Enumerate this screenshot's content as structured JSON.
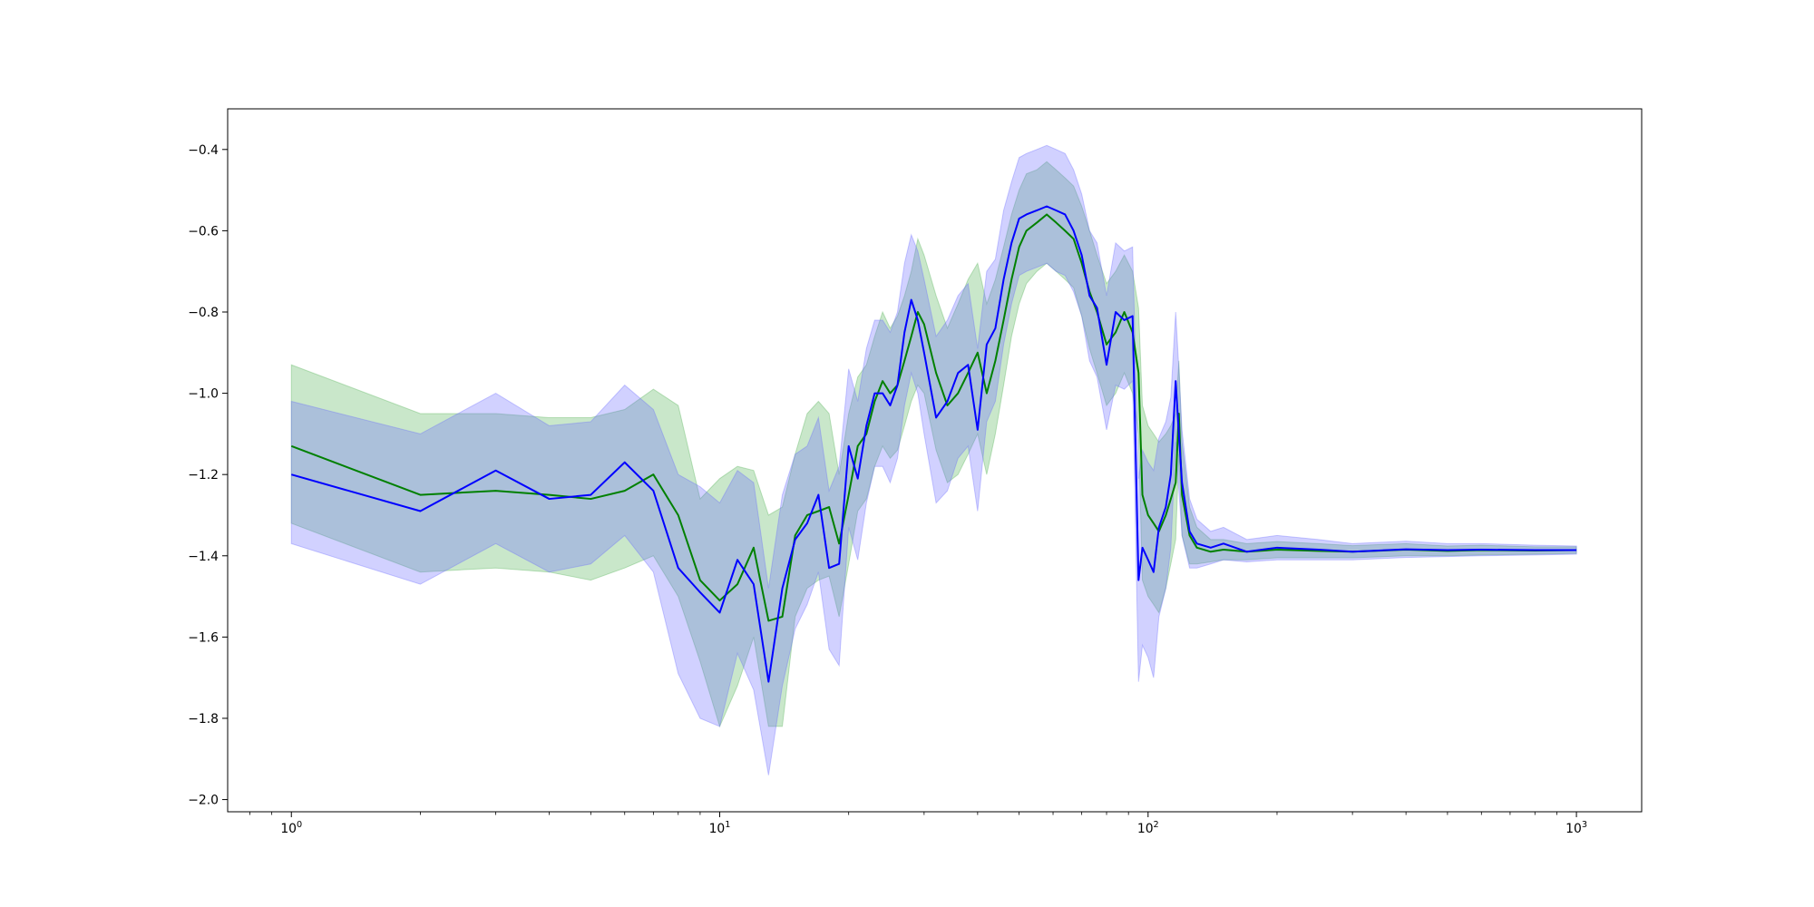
{
  "chart_data": {
    "type": "line",
    "title": "",
    "xlabel": "",
    "ylabel": "",
    "xscale": "log",
    "xlim": [
      0.71,
      1420
    ],
    "ylim": [
      -2.03,
      -0.3
    ],
    "grid": false,
    "legend": "none",
    "x_ticks": [
      {
        "value": 1,
        "base": "10",
        "exp": "0"
      },
      {
        "value": 10,
        "base": "10",
        "exp": "1"
      },
      {
        "value": 100,
        "base": "10",
        "exp": "2"
      },
      {
        "value": 1000,
        "base": "10",
        "exp": "3"
      }
    ],
    "y_ticks": [
      {
        "value": -0.4,
        "label": "−0.4"
      },
      {
        "value": -0.6,
        "label": "−0.6"
      },
      {
        "value": -0.8,
        "label": "−0.8"
      },
      {
        "value": -1.0,
        "label": "−1.0"
      },
      {
        "value": -1.2,
        "label": "−1.2"
      },
      {
        "value": -1.4,
        "label": "−1.4"
      },
      {
        "value": -1.6,
        "label": "−1.6"
      },
      {
        "value": -1.8,
        "label": "−1.8"
      },
      {
        "value": -2.0,
        "label": "−2.0"
      }
    ],
    "series": [
      {
        "color": "#008000",
        "band_color": "#4CAF50",
        "x": [
          1,
          2,
          3,
          4,
          5,
          6,
          7,
          8,
          9,
          10,
          11,
          12,
          13,
          14,
          15,
          16,
          17,
          18,
          19,
          20,
          21,
          22,
          23,
          24,
          25,
          26,
          27,
          28,
          29,
          30,
          32,
          34,
          36,
          38,
          40,
          42,
          44,
          46,
          48,
          50,
          52,
          55,
          58,
          61,
          64,
          67,
          70,
          73,
          76,
          80,
          84,
          88,
          92,
          95,
          97,
          100,
          103,
          106,
          110,
          113,
          116,
          118,
          120,
          125,
          130,
          140,
          150,
          170,
          200,
          250,
          300,
          400,
          500,
          600,
          800,
          1000
        ],
        "y": [
          -1.13,
          -1.25,
          -1.24,
          -1.25,
          -1.26,
          -1.24,
          -1.2,
          -1.3,
          -1.46,
          -1.51,
          -1.47,
          -1.38,
          -1.56,
          -1.55,
          -1.35,
          -1.3,
          -1.29,
          -1.28,
          -1.37,
          -1.25,
          -1.13,
          -1.1,
          -1.02,
          -0.97,
          -1.0,
          -0.98,
          -0.92,
          -0.86,
          -0.8,
          -0.83,
          -0.95,
          -1.03,
          -1.0,
          -0.95,
          -0.9,
          -1.0,
          -0.92,
          -0.82,
          -0.72,
          -0.64,
          -0.6,
          -0.58,
          -0.56,
          -0.58,
          -0.6,
          -0.62,
          -0.68,
          -0.75,
          -0.8,
          -0.88,
          -0.85,
          -0.8,
          -0.85,
          -0.95,
          -1.25,
          -1.3,
          -1.32,
          -1.34,
          -1.3,
          -1.26,
          -1.22,
          -1.05,
          -1.25,
          -1.35,
          -1.38,
          -1.39,
          -1.385,
          -1.39,
          -1.385,
          -1.388,
          -1.39,
          -1.385,
          -1.388,
          -1.386,
          -1.387,
          -1.386
        ],
        "lower": [
          -1.32,
          -1.44,
          -1.43,
          -1.44,
          -1.46,
          -1.43,
          -1.4,
          -1.5,
          -1.66,
          -1.82,
          -1.72,
          -1.6,
          -1.82,
          -1.82,
          -1.55,
          -1.48,
          -1.46,
          -1.45,
          -1.55,
          -1.42,
          -1.29,
          -1.26,
          -1.18,
          -1.13,
          -1.16,
          -1.14,
          -1.08,
          -1.02,
          -0.98,
          -1.0,
          -1.14,
          -1.22,
          -1.2,
          -1.15,
          -1.1,
          -1.2,
          -1.1,
          -0.98,
          -0.86,
          -0.78,
          -0.73,
          -0.7,
          -0.68,
          -0.7,
          -0.72,
          -0.74,
          -0.81,
          -0.89,
          -0.95,
          -1.03,
          -1.0,
          -0.95,
          -1.0,
          -1.1,
          -1.46,
          -1.5,
          -1.52,
          -1.54,
          -1.48,
          -1.42,
          -1.36,
          -1.15,
          -1.35,
          -1.42,
          -1.42,
          -1.415,
          -1.41,
          -1.41,
          -1.405,
          -1.405,
          -1.405,
          -1.4,
          -1.4,
          -1.398,
          -1.396,
          -1.394
        ],
        "upper": [
          -0.93,
          -1.05,
          -1.05,
          -1.06,
          -1.06,
          -1.04,
          -0.99,
          -1.03,
          -1.26,
          -1.21,
          -1.18,
          -1.19,
          -1.3,
          -1.28,
          -1.15,
          -1.05,
          -1.02,
          -1.05,
          -1.2,
          -1.05,
          -0.96,
          -0.93,
          -0.86,
          -0.8,
          -0.84,
          -0.81,
          -0.76,
          -0.7,
          -0.62,
          -0.66,
          -0.76,
          -0.84,
          -0.78,
          -0.72,
          -0.68,
          -0.78,
          -0.72,
          -0.64,
          -0.56,
          -0.5,
          -0.46,
          -0.45,
          -0.43,
          -0.45,
          -0.47,
          -0.49,
          -0.54,
          -0.6,
          -0.66,
          -0.73,
          -0.7,
          -0.66,
          -0.7,
          -0.79,
          -1.03,
          -1.08,
          -1.1,
          -1.12,
          -1.1,
          -1.08,
          -1.05,
          -0.92,
          -1.12,
          -1.28,
          -1.33,
          -1.36,
          -1.36,
          -1.37,
          -1.365,
          -1.37,
          -1.375,
          -1.37,
          -1.376,
          -1.374,
          -1.378,
          -1.378
        ]
      },
      {
        "color": "#0000FF",
        "band_color": "#6666FF",
        "x": [
          1,
          2,
          3,
          4,
          5,
          6,
          7,
          8,
          9,
          10,
          11,
          12,
          13,
          14,
          15,
          16,
          17,
          18,
          19,
          20,
          21,
          22,
          23,
          24,
          25,
          26,
          27,
          28,
          29,
          30,
          32,
          34,
          36,
          38,
          40,
          42,
          44,
          46,
          48,
          50,
          52,
          55,
          58,
          61,
          64,
          67,
          70,
          73,
          76,
          80,
          84,
          88,
          92,
          95,
          97,
          100,
          103,
          106,
          110,
          113,
          116,
          118,
          120,
          125,
          130,
          140,
          150,
          170,
          200,
          250,
          300,
          400,
          500,
          600,
          800,
          1000
        ],
        "y": [
          -1.2,
          -1.29,
          -1.19,
          -1.26,
          -1.25,
          -1.17,
          -1.24,
          -1.43,
          -1.49,
          -1.54,
          -1.41,
          -1.47,
          -1.71,
          -1.48,
          -1.36,
          -1.32,
          -1.25,
          -1.43,
          -1.42,
          -1.13,
          -1.21,
          -1.08,
          -1.0,
          -1.0,
          -1.03,
          -0.98,
          -0.85,
          -0.77,
          -0.82,
          -0.9,
          -1.06,
          -1.02,
          -0.95,
          -0.93,
          -1.09,
          -0.88,
          -0.84,
          -0.72,
          -0.63,
          -0.57,
          -0.56,
          -0.55,
          -0.54,
          -0.55,
          -0.56,
          -0.6,
          -0.66,
          -0.76,
          -0.79,
          -0.93,
          -0.8,
          -0.82,
          -0.81,
          -1.46,
          -1.38,
          -1.41,
          -1.44,
          -1.33,
          -1.28,
          -1.2,
          -0.97,
          -1.1,
          -1.22,
          -1.34,
          -1.37,
          -1.38,
          -1.37,
          -1.39,
          -1.38,
          -1.385,
          -1.39,
          -1.384,
          -1.386,
          -1.385,
          -1.386,
          -1.386
        ],
        "lower": [
          -1.37,
          -1.47,
          -1.37,
          -1.44,
          -1.42,
          -1.35,
          -1.44,
          -1.69,
          -1.8,
          -1.82,
          -1.64,
          -1.73,
          -1.94,
          -1.72,
          -1.58,
          -1.52,
          -1.44,
          -1.63,
          -1.67,
          -1.33,
          -1.41,
          -1.27,
          -1.18,
          -1.18,
          -1.22,
          -1.16,
          -1.03,
          -0.95,
          -1.0,
          -1.1,
          -1.27,
          -1.24,
          -1.16,
          -1.13,
          -1.29,
          -1.07,
          -1.02,
          -0.88,
          -0.78,
          -0.71,
          -0.7,
          -0.69,
          -0.68,
          -0.7,
          -0.71,
          -0.75,
          -0.81,
          -0.92,
          -0.96,
          -1.09,
          -0.98,
          -0.99,
          -0.97,
          -1.71,
          -1.62,
          -1.65,
          -1.7,
          -1.55,
          -1.48,
          -1.38,
          -1.12,
          -1.24,
          -1.35,
          -1.43,
          -1.43,
          -1.42,
          -1.41,
          -1.415,
          -1.41,
          -1.41,
          -1.41,
          -1.404,
          -1.402,
          -1.4,
          -1.398,
          -1.396
        ],
        "upper": [
          -1.02,
          -1.1,
          -1.0,
          -1.08,
          -1.07,
          -0.98,
          -1.04,
          -1.2,
          -1.23,
          -1.27,
          -1.19,
          -1.22,
          -1.48,
          -1.25,
          -1.15,
          -1.13,
          -1.06,
          -1.24,
          -1.18,
          -0.94,
          -1.02,
          -0.89,
          -0.82,
          -0.82,
          -0.85,
          -0.8,
          -0.68,
          -0.61,
          -0.65,
          -0.72,
          -0.86,
          -0.82,
          -0.76,
          -0.73,
          -0.89,
          -0.7,
          -0.67,
          -0.55,
          -0.48,
          -0.42,
          -0.41,
          -0.4,
          -0.39,
          -0.4,
          -0.41,
          -0.45,
          -0.51,
          -0.6,
          -0.63,
          -0.76,
          -0.63,
          -0.65,
          -0.64,
          -1.21,
          -1.14,
          -1.17,
          -1.19,
          -1.11,
          -1.07,
          -1.01,
          -0.8,
          -0.94,
          -1.09,
          -1.26,
          -1.31,
          -1.34,
          -1.33,
          -1.36,
          -1.35,
          -1.36,
          -1.37,
          -1.364,
          -1.37,
          -1.37,
          -1.374,
          -1.376
        ]
      }
    ]
  }
}
